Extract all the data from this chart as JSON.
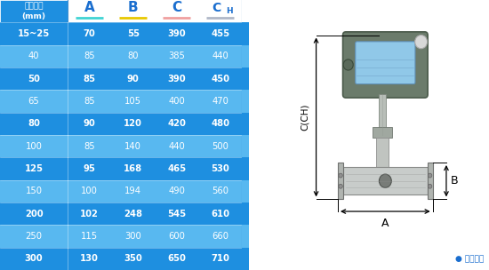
{
  "headers": [
    "仪表口径\n(mm)",
    "A",
    "B",
    "C",
    "CH"
  ],
  "underline_colors": [
    null,
    "#40d4d4",
    "#e8c800",
    "#f0a0a0",
    "#b0b8c8"
  ],
  "rows": [
    [
      "15~25",
      "70",
      "55",
      "390",
      "455"
    ],
    [
      "40",
      "85",
      "80",
      "385",
      "440"
    ],
    [
      "50",
      "85",
      "90",
      "390",
      "450"
    ],
    [
      "65",
      "85",
      "105",
      "400",
      "470"
    ],
    [
      "80",
      "90",
      "120",
      "420",
      "480"
    ],
    [
      "100",
      "85",
      "140",
      "440",
      "500"
    ],
    [
      "125",
      "95",
      "168",
      "465",
      "530"
    ],
    [
      "150",
      "100",
      "194",
      "490",
      "560"
    ],
    [
      "200",
      "102",
      "248",
      "545",
      "610"
    ],
    [
      "250",
      "115",
      "300",
      "600",
      "660"
    ],
    [
      "300",
      "130",
      "350",
      "650",
      "710"
    ]
  ],
  "dark_row_bg": "#1e8fe0",
  "light_row_bg": "#58b8f0",
  "header_bg": "#ffffff",
  "header_text_color": "#1a6ecf",
  "header_first_col_bg": "#1e8fe0",
  "row_text_color": "#ffffff",
  "table_border_color": "#4090d0",
  "diagram_note": "● 常规仪表",
  "diagram_note_color": "#1a6ecf",
  "bg_color": "#ffffff",
  "blue_strip_colors": [
    "#1e8fe0",
    "#58b8f0"
  ],
  "col_widths": [
    1.4,
    0.9,
    0.9,
    0.9,
    0.9
  ]
}
